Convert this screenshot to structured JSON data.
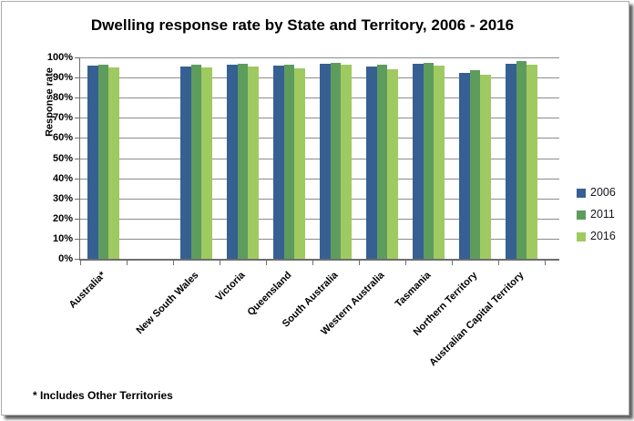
{
  "chart_data": {
    "type": "bar",
    "title": "Dwelling response rate by State and Territory, 2006 - 2016",
    "xlabel": "",
    "ylabel": "Response rate",
    "ylim": [
      0,
      100
    ],
    "ytick_step": 10,
    "ytick_labels": [
      "0%",
      "10%",
      "20%",
      "30%",
      "40%",
      "50%",
      "60%",
      "70%",
      "80%",
      "90%",
      "100%"
    ],
    "grid": "horizontal",
    "legend_position": "right",
    "categories": [
      "Australia*",
      "New South Wales",
      "Victoria",
      "Queensland",
      "South Australia",
      "Western Australia",
      "Tasmania",
      "Northern Territory",
      "Australian Capital Territory"
    ],
    "series": [
      {
        "name": "2006",
        "color": "#366092",
        "values": [
          96.0,
          95.5,
          96.5,
          96.0,
          97.0,
          95.5,
          97.0,
          92.5,
          97.0
        ]
      },
      {
        "name": "2011",
        "color": "#5E9C5E",
        "values": [
          96.5,
          96.5,
          97.0,
          96.5,
          97.5,
          96.5,
          97.5,
          93.5,
          98.0
        ]
      },
      {
        "name": "2016",
        "color": "#9FCA61",
        "values": [
          95.0,
          95.0,
          95.5,
          94.5,
          96.5,
          94.0,
          96.0,
          91.5,
          96.5
        ]
      }
    ],
    "layout_hints": {
      "blank_category_slot_after_index": 0,
      "total_category_slots": 10
    },
    "footnote": "* Includes Other Territories",
    "colors": {
      "gridline": "#8c8c8c",
      "axis": "#6e6e6e",
      "title_text": "#000000",
      "frame_border": "#adadad"
    }
  }
}
